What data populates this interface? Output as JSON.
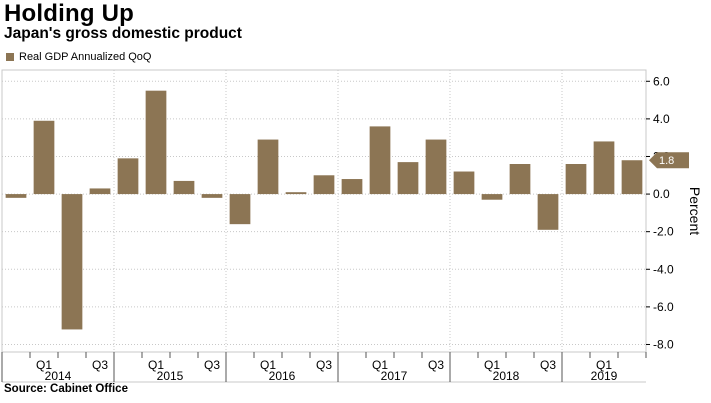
{
  "title": "Holding Up",
  "subtitle": "Japan's gross domestic product",
  "source": "Source: Cabinet Office",
  "colors": {
    "bar": "#8c7554",
    "grid": "#c8c8c8"
  },
  "chart_data": {
    "type": "bar",
    "series": [
      {
        "name": "Real GDP Annualized QoQ",
        "values": [
          -0.2,
          3.9,
          -7.2,
          0.3,
          1.9,
          5.5,
          0.7,
          -0.2,
          -1.6,
          2.9,
          0.1,
          1.0,
          0.8,
          3.6,
          1.7,
          2.9,
          1.2,
          -0.3,
          1.6,
          -1.9,
          1.6,
          2.8,
          1.8
        ]
      }
    ],
    "quarter_labels": [
      "",
      "Q1",
      "",
      "Q3",
      "",
      "Q1",
      "",
      "Q3",
      "",
      "Q1",
      "",
      "Q3",
      "",
      "Q1",
      "",
      "Q3",
      "",
      "Q1",
      "",
      "Q3",
      "",
      "Q1",
      ""
    ],
    "years": [
      {
        "label": "2014",
        "start": 0,
        "end": 4
      },
      {
        "label": "2015",
        "start": 4,
        "end": 8
      },
      {
        "label": "2016",
        "start": 8,
        "end": 12
      },
      {
        "label": "2017",
        "start": 12,
        "end": 16
      },
      {
        "label": "2018",
        "start": 16,
        "end": 20
      },
      {
        "label": "2019",
        "start": 20,
        "end": 23
      }
    ],
    "yticks": [
      6.0,
      4.0,
      2.0,
      0.0,
      -2.0,
      -4.0,
      -6.0,
      -8.0
    ],
    "ytick_labels": [
      "6.0",
      "4.0",
      "2.0",
      "0.0",
      "-2.0",
      "-4.0",
      "-6.0",
      "-8.0"
    ],
    "ylim": [
      -8.4,
      6.6
    ],
    "ylabel": "Percent",
    "last_value_label": "1.8",
    "last_value": 1.8
  }
}
